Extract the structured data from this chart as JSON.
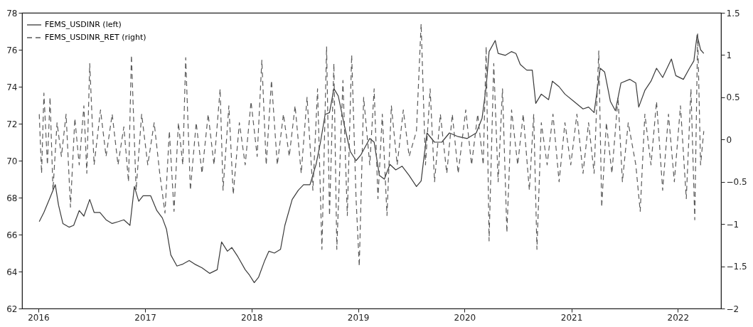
{
  "chart_data": {
    "type": "line",
    "legend": "top left",
    "xlim": [
      "2015-11-06",
      "2022-05-29"
    ],
    "xticks": [
      "2016",
      "2017",
      "2018",
      "2019",
      "2020",
      "2021",
      "2022"
    ],
    "ylim": [
      62,
      78
    ],
    "yticks": [
      62,
      64,
      66,
      68,
      70,
      72,
      74,
      76,
      78
    ],
    "y2lim": [
      -2,
      1.5
    ],
    "y2ticks": [
      -2,
      -1.5,
      -1,
      -0.5,
      0,
      0.5,
      1,
      1.5
    ],
    "series": [
      {
        "name": "FEMS_USDINR (left)",
        "color": "#3a3a3a",
        "line_style": "solid",
        "x": [
          "2016-01-04",
          "2016-01-20",
          "2016-02-10",
          "2016-02-28",
          "2016-03-10",
          "2016-03-25",
          "2016-04-15",
          "2016-05-01",
          "2016-05-20",
          "2016-06-05",
          "2016-06-25",
          "2016-07-10",
          "2016-07-30",
          "2016-08-20",
          "2016-09-10",
          "2016-10-01",
          "2016-10-20",
          "2016-11-10",
          "2016-11-25",
          "2016-12-10",
          "2016-12-25",
          "2017-01-20",
          "2017-02-10",
          "2017-03-01",
          "2017-03-15",
          "2017-03-30",
          "2017-04-20",
          "2017-05-10",
          "2017-06-01",
          "2017-06-20",
          "2017-07-15",
          "2017-08-10",
          "2017-09-05",
          "2017-09-20",
          "2017-10-10",
          "2017-10-25",
          "2017-11-15",
          "2017-12-10",
          "2017-12-25",
          "2018-01-10",
          "2018-01-25",
          "2018-02-15",
          "2018-03-01",
          "2018-03-20",
          "2018-04-10",
          "2018-04-25",
          "2018-05-20",
          "2018-06-10",
          "2018-06-28",
          "2018-07-20",
          "2018-08-10",
          "2018-08-25",
          "2018-09-10",
          "2018-09-25",
          "2018-10-10",
          "2018-10-25",
          "2018-11-15",
          "2018-12-05",
          "2018-12-25",
          "2019-01-10",
          "2019-02-10",
          "2019-02-25",
          "2019-03-15",
          "2019-04-01",
          "2019-04-20",
          "2019-05-10",
          "2019-06-01",
          "2019-06-25",
          "2019-07-20",
          "2019-08-05",
          "2019-08-25",
          "2019-09-20",
          "2019-10-15",
          "2019-11-10",
          "2019-12-10",
          "2020-01-10",
          "2020-02-10",
          "2020-03-01",
          "2020-03-15",
          "2020-03-25",
          "2020-04-15",
          "2020-04-25",
          "2020-05-20",
          "2020-06-10",
          "2020-06-25",
          "2020-07-10",
          "2020-08-01",
          "2020-08-20",
          "2020-09-01",
          "2020-09-20",
          "2020-10-15",
          "2020-10-28",
          "2020-11-20",
          "2020-12-10",
          "2021-01-10",
          "2021-02-10",
          "2021-03-01",
          "2021-03-20",
          "2021-04-10",
          "2021-04-25",
          "2021-05-15",
          "2021-06-01",
          "2021-06-20",
          "2021-07-20",
          "2021-08-10",
          "2021-08-20",
          "2021-09-10",
          "2021-10-01",
          "2021-10-20",
          "2021-11-10",
          "2021-12-10",
          "2021-12-25",
          "2022-01-20",
          "2022-02-10",
          "2022-02-25",
          "2022-03-08",
          "2022-03-20",
          "2022-03-31"
        ],
        "values": [
          66.7,
          67.2,
          68.0,
          68.7,
          67.6,
          66.6,
          66.4,
          66.5,
          67.3,
          67.0,
          67.9,
          67.2,
          67.2,
          66.8,
          66.6,
          66.7,
          66.8,
          66.5,
          68.6,
          67.8,
          68.1,
          68.1,
          67.3,
          66.9,
          66.3,
          64.9,
          64.3,
          64.4,
          64.6,
          64.4,
          64.2,
          63.9,
          64.1,
          65.6,
          65.1,
          65.3,
          64.8,
          64.1,
          63.8,
          63.4,
          63.7,
          64.6,
          65.1,
          65.0,
          65.2,
          66.5,
          67.9,
          68.4,
          68.7,
          68.7,
          69.8,
          71.0,
          72.5,
          72.6,
          73.9,
          73.5,
          71.9,
          70.5,
          70.0,
          70.3,
          71.2,
          71.0,
          69.2,
          69.0,
          69.8,
          69.5,
          69.7,
          69.2,
          68.6,
          68.9,
          71.5,
          71.0,
          71.0,
          71.5,
          71.3,
          71.2,
          71.5,
          72.3,
          74.0,
          75.9,
          76.5,
          75.8,
          75.7,
          75.9,
          75.8,
          75.2,
          74.9,
          74.9,
          73.1,
          73.6,
          73.3,
          74.3,
          74.0,
          73.6,
          73.2,
          72.8,
          72.9,
          72.6,
          75.0,
          74.8,
          73.2,
          72.7,
          74.2,
          74.4,
          74.2,
          72.9,
          73.8,
          74.3,
          75.0,
          74.5,
          75.5,
          74.6,
          74.4,
          75.0,
          75.4,
          76.8,
          76.0,
          75.8
        ]
      },
      {
        "name": "FEMS_USDINR_RET (right)",
        "color": "#5a5a5a",
        "line_style": "dashed",
        "axis": "y2",
        "x": [
          "2016-01-04",
          "2016-01-12",
          "2016-01-20",
          "2016-02-01",
          "2016-02-10",
          "2016-02-20",
          "2016-03-05",
          "2016-03-20",
          "2016-04-05",
          "2016-04-20",
          "2016-05-05",
          "2016-05-20",
          "2016-06-05",
          "2016-06-15",
          "2016-06-25",
          "2016-07-10",
          "2016-08-01",
          "2016-08-20",
          "2016-09-10",
          "2016-09-30",
          "2016-10-20",
          "2016-11-05",
          "2016-11-15",
          "2016-12-01",
          "2016-12-20",
          "2017-01-10",
          "2017-02-01",
          "2017-02-20",
          "2017-03-10",
          "2017-03-25",
          "2017-04-10",
          "2017-04-25",
          "2017-05-10",
          "2017-05-20",
          "2017-06-05",
          "2017-06-25",
          "2017-07-15",
          "2017-08-05",
          "2017-08-25",
          "2017-09-15",
          "2017-09-25",
          "2017-10-15",
          "2017-10-30",
          "2017-11-20",
          "2017-12-10",
          "2017-12-30",
          "2018-01-20",
          "2018-02-05",
          "2018-02-20",
          "2018-03-10",
          "2018-03-30",
          "2018-04-20",
          "2018-05-10",
          "2018-05-30",
          "2018-06-20",
          "2018-07-10",
          "2018-07-30",
          "2018-08-15",
          "2018-08-30",
          "2018-09-15",
          "2018-09-25",
          "2018-10-10",
          "2018-10-20",
          "2018-11-10",
          "2018-11-25",
          "2018-12-10",
          "2018-12-25",
          "2019-01-05",
          "2019-01-20",
          "2019-02-10",
          "2019-02-25",
          "2019-03-10",
          "2019-03-25",
          "2019-04-10",
          "2019-04-25",
          "2019-05-15",
          "2019-06-05",
          "2019-06-25",
          "2019-07-20",
          "2019-08-05",
          "2019-08-20",
          "2019-09-05",
          "2019-09-20",
          "2019-10-10",
          "2019-11-01",
          "2019-11-20",
          "2019-12-10",
          "2020-01-05",
          "2020-01-25",
          "2020-02-15",
          "2020-03-05",
          "2020-03-15",
          "2020-03-25",
          "2020-04-10",
          "2020-04-25",
          "2020-05-10",
          "2020-05-25",
          "2020-06-10",
          "2020-07-01",
          "2020-07-20",
          "2020-08-10",
          "2020-08-25",
          "2020-09-05",
          "2020-09-20",
          "2020-10-10",
          "2020-10-30",
          "2020-11-20",
          "2020-12-10",
          "2020-12-30",
          "2021-01-20",
          "2021-02-10",
          "2021-03-01",
          "2021-03-20",
          "2021-04-05",
          "2021-04-15",
          "2021-05-01",
          "2021-05-20",
          "2021-06-10",
          "2021-06-25",
          "2021-07-15",
          "2021-08-10",
          "2021-08-25",
          "2021-09-10",
          "2021-10-01",
          "2021-10-20",
          "2021-11-10",
          "2021-11-30",
          "2021-12-20",
          "2022-01-10",
          "2022-01-30",
          "2022-02-15",
          "2022-02-28",
          "2022-03-10",
          "2022-03-20",
          "2022-03-31"
        ],
        "values": [
          0.3,
          -0.4,
          0.55,
          -0.3,
          0.5,
          -0.6,
          0.2,
          -0.2,
          0.3,
          -0.8,
          0.25,
          -0.3,
          0.4,
          -0.4,
          0.9,
          -0.3,
          0.35,
          -0.2,
          0.3,
          -0.3,
          0.15,
          -0.5,
          1.0,
          -0.6,
          0.3,
          -0.3,
          0.2,
          -0.4,
          -0.87,
          0.1,
          -0.85,
          0.2,
          -0.3,
          0.97,
          -0.6,
          0.2,
          -0.4,
          0.3,
          -0.3,
          0.6,
          -0.6,
          0.4,
          -0.65,
          0.2,
          -0.3,
          0.45,
          -0.2,
          0.94,
          -0.3,
          0.7,
          -0.3,
          0.3,
          -0.2,
          0.4,
          -0.4,
          0.5,
          -0.6,
          0.6,
          -1.3,
          1.1,
          -0.9,
          0.9,
          -1.3,
          0.7,
          -0.9,
          1.0,
          -0.7,
          -1.5,
          0.5,
          -0.3,
          0.6,
          -0.7,
          0.3,
          -0.9,
          0.4,
          -0.3,
          0.35,
          -0.2,
          0.1,
          1.37,
          -0.3,
          0.6,
          -0.5,
          0.3,
          -0.4,
          0.3,
          -0.4,
          0.35,
          -0.3,
          0.3,
          -0.3,
          1.1,
          -1.2,
          0.9,
          -0.5,
          0.6,
          -1.1,
          0.35,
          -0.3,
          0.3,
          -0.6,
          0.3,
          -1.3,
          0.2,
          -0.3,
          0.3,
          -0.5,
          0.2,
          -0.3,
          0.3,
          -0.4,
          0.2,
          -0.4,
          1.05,
          -0.8,
          0.2,
          -0.4,
          0.5,
          -0.5,
          0.2,
          -0.3,
          -0.85,
          0.3,
          -0.3,
          0.45,
          -0.6,
          0.3,
          -0.5,
          0.4,
          -0.7,
          0.6,
          -0.95,
          1.25,
          -0.3,
          0.1
        ]
      }
    ]
  }
}
